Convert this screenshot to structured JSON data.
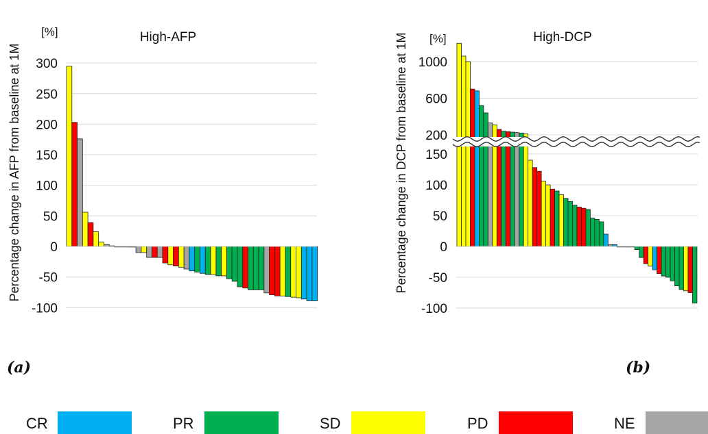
{
  "colors": {
    "CR": "#00b0f0",
    "PR": "#00b050",
    "SD": "#ffff00",
    "PD": "#ff0000",
    "NE": "#a6a6a6"
  },
  "legend": [
    {
      "key": "CR",
      "label": "CR"
    },
    {
      "key": "PR",
      "label": "PR"
    },
    {
      "key": "SD",
      "label": "SD"
    },
    {
      "key": "PD",
      "label": "PD"
    },
    {
      "key": "NE",
      "label": "NE"
    }
  ],
  "chart_data": [
    {
      "type": "bar",
      "panel_label": "(a)",
      "title": "High-AFP",
      "unit": "[%]",
      "ylabel": "Percentage change in AFP from baseline at 1M",
      "ylim": [
        -100,
        300
      ],
      "yticks": [
        300,
        250,
        200,
        150,
        100,
        50,
        0,
        -50,
        -100
      ],
      "grid": true,
      "values": [
        295,
        203,
        176,
        56,
        39,
        24,
        7,
        3,
        1,
        0,
        0,
        0,
        -1,
        -10,
        -10,
        -18,
        -18,
        -18,
        -27,
        -30,
        -32,
        -34,
        -37,
        -40,
        -42,
        -44,
        -46,
        -46,
        -48,
        -48,
        -53,
        -57,
        -66,
        -68,
        -71,
        -71,
        -71,
        -76,
        -79,
        -81,
        -81,
        -82,
        -83,
        -84,
        -86,
        -89,
        -89
      ],
      "status": [
        "SD",
        "PD",
        "NE",
        "SD",
        "PD",
        "SD",
        "SD",
        "NE",
        "NE",
        "NE",
        "NE",
        "NE",
        "NE",
        "NE",
        "SD",
        "NE",
        "PD",
        "NE",
        "PD",
        "SD",
        "PD",
        "SD",
        "NE",
        "CR",
        "PR",
        "CR",
        "PR",
        "SD",
        "PR",
        "SD",
        "PR",
        "PR",
        "PR",
        "PD",
        "PR",
        "PR",
        "PR",
        "NE",
        "PD",
        "PD",
        "SD",
        "PR",
        "SD",
        "SD",
        "CR",
        "CR",
        "CR"
      ]
    },
    {
      "type": "bar",
      "panel_label": "(b)",
      "title": "High-DCP",
      "unit": "[%]",
      "ylabel": "Percentage change in DCP from baseline at 1M",
      "axis_break": [
        180,
        200
      ],
      "yticks": [
        1000,
        600,
        200,
        150,
        100,
        50,
        0,
        -50,
        -100
      ],
      "grid": true,
      "values": [
        1200,
        1060,
        1000,
        700,
        680,
        520,
        440,
        330,
        310,
        260,
        240,
        235,
        230,
        225,
        220,
        210,
        140,
        128,
        122,
        106,
        100,
        93,
        90,
        84,
        78,
        73,
        67,
        64,
        62,
        60,
        46,
        44,
        40,
        20,
        3,
        3,
        0,
        0,
        0,
        0,
        -5,
        -18,
        -28,
        -32,
        -38,
        -44,
        -48,
        -50,
        -56,
        -64,
        -70,
        -72,
        -75,
        -92
      ],
      "status": [
        "SD",
        "SD",
        "SD",
        "PD",
        "CR",
        "PR",
        "PR",
        "NE",
        "SD",
        "PD",
        "PR",
        "PD",
        "PR",
        "NE",
        "PR",
        "SD",
        "SD",
        "PD",
        "PD",
        "SD",
        "SD",
        "PD",
        "PR",
        "SD",
        "PR",
        "PR",
        "PR",
        "PD",
        "PD",
        "PR",
        "PR",
        "PR",
        "PR",
        "CR",
        "NE",
        "CR",
        "NE",
        "NE",
        "NE",
        "NE",
        "PR",
        "PR",
        "PD",
        "SD",
        "CR",
        "PD",
        "PR",
        "PR",
        "PR",
        "PR",
        "PR",
        "SD",
        "PD",
        "PR"
      ]
    }
  ]
}
